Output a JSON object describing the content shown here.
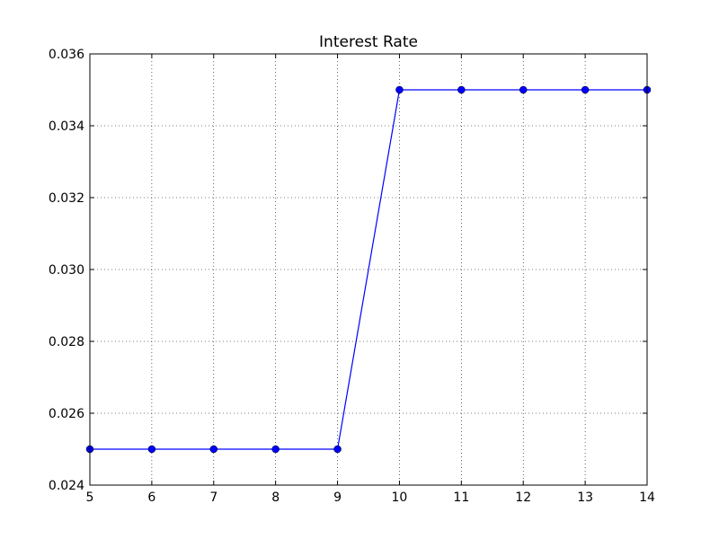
{
  "chart_data": {
    "type": "line",
    "title": "Interest Rate",
    "xlabel": "",
    "ylabel": "",
    "x": [
      5,
      6,
      7,
      8,
      9,
      10,
      11,
      12,
      13,
      14
    ],
    "series": [
      {
        "values": [
          0.025,
          0.025,
          0.025,
          0.025,
          0.025,
          0.035,
          0.035,
          0.035,
          0.035,
          0.035
        ],
        "color": "#0000ff",
        "marker": "circle"
      }
    ],
    "xlim": [
      5,
      14
    ],
    "ylim": [
      0.024,
      0.036
    ],
    "x_ticks": [
      "5",
      "6",
      "7",
      "8",
      "9",
      "10",
      "11",
      "12",
      "13",
      "14"
    ],
    "y_ticks": [
      "0.024",
      "0.026",
      "0.028",
      "0.030",
      "0.032",
      "0.034",
      "0.036"
    ],
    "grid": true
  }
}
